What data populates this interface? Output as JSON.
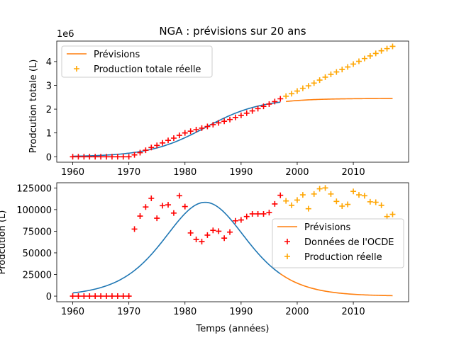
{
  "title": "NGA : prévisions sur 20 ans",
  "chart_data": [
    {
      "type": "line",
      "xlabel": "",
      "ylabel": "Prodcution totale (L)",
      "offset_text": "1e6",
      "xlim": [
        1957.15,
        2019.85
      ],
      "ylim": [
        -230000,
        4860000
      ],
      "x_ticks": [
        1960,
        1970,
        1980,
        1990,
        2000,
        2010
      ],
      "y_ticks": [
        0,
        1000000,
        2000000,
        3000000,
        4000000
      ],
      "y_tick_labels": [
        "0",
        "1",
        "2",
        "3",
        "4"
      ],
      "legend": {
        "position": "upper-left",
        "entries": [
          {
            "label": "Prévisions",
            "kind": "line",
            "color": "#ff7f0e"
          },
          {
            "label": "Production totale réelle",
            "kind": "plus",
            "color": "#ffa500"
          }
        ]
      },
      "fit_line": {
        "color": "#1f77b4",
        "x_start": 1960,
        "x_end": 1997
      },
      "forecast_line": {
        "color": "#ff7f0e",
        "x_start": 1998,
        "x_end": 2017
      },
      "series": [
        {
          "name": "Production totale réelle",
          "color": "#ff0000",
          "marker": "plus",
          "x": [
            1960,
            1961,
            1962,
            1963,
            1964,
            1965,
            1966,
            1967,
            1968,
            1969,
            1970,
            1971,
            1972,
            1973,
            1974,
            1975,
            1976,
            1977,
            1978,
            1979,
            1980,
            1981,
            1982,
            1983,
            1984,
            1985,
            1986,
            1987,
            1988,
            1989,
            1990,
            1991,
            1992,
            1993,
            1994,
            1995,
            1996,
            1997
          ],
          "y": [
            0,
            0,
            0,
            0,
            0,
            0,
            0,
            0,
            0,
            0,
            0,
            77000,
            170000,
            273000,
            386000,
            476000,
            580000,
            686000,
            782000,
            898000,
            1001000,
            1074000,
            1139000,
            1202000,
            1272000,
            1348000,
            1423000,
            1490000,
            1564000,
            1651000,
            1739000,
            1830000,
            1925000,
            2021000,
            2116000,
            2212000,
            2318000,
            2434000
          ]
        },
        {
          "name": "Production totale réelle",
          "color": "#ffa500",
          "marker": "plus",
          "x": [
            1998,
            1999,
            2000,
            2001,
            2002,
            2003,
            2004,
            2005,
            2006,
            2007,
            2008,
            2009,
            2010,
            2011,
            2012,
            2013,
            2014,
            2015,
            2016,
            2017
          ],
          "y": [
            2544000,
            2649000,
            2760000,
            2877000,
            2978000,
            3096000,
            3220000,
            3345000,
            3463000,
            3563000,
            3667000,
            3773000,
            3894000,
            4011000,
            4127000,
            4236000,
            4341000,
            4452000,
            4544000,
            4638000
          ]
        }
      ]
    },
    {
      "type": "line",
      "xlabel": "Temps (années)",
      "ylabel": "Prodcution (L)",
      "xlim": [
        1957.15,
        2019.85
      ],
      "ylim": [
        -6500,
        131000
      ],
      "x_ticks": [
        1960,
        1970,
        1980,
        1990,
        2000,
        2010
      ],
      "y_ticks": [
        0,
        25000,
        50000,
        75000,
        100000,
        125000
      ],
      "legend": {
        "position": "center-right",
        "entries": [
          {
            "label": "Prévisions",
            "kind": "line",
            "color": "#ff7f0e"
          },
          {
            "label": "Données de l'OCDE",
            "kind": "plus",
            "color": "#ff0000"
          },
          {
            "label": "Production réelle",
            "kind": "plus",
            "color": "#ffa500"
          }
        ]
      },
      "fit_line": {
        "color": "#1f77b4",
        "x_start": 1960,
        "x_end": 1997
      },
      "forecast_line": {
        "color": "#ff7f0e",
        "x_start": 1997,
        "x_end": 2017
      },
      "series": [
        {
          "name": "Données de l'OCDE",
          "color": "#ff0000",
          "marker": "plus",
          "x": [
            1960,
            1961,
            1962,
            1963,
            1964,
            1965,
            1966,
            1967,
            1968,
            1969,
            1970,
            1971,
            1972,
            1973,
            1974,
            1975,
            1976,
            1977,
            1978,
            1979,
            1980,
            1981,
            1982,
            1983,
            1984,
            1985,
            1986,
            1987,
            1988,
            1989,
            1990,
            1991,
            1992,
            1993,
            1994,
            1995,
            1996,
            1997
          ],
          "y": [
            0,
            0,
            0,
            0,
            0,
            0,
            0,
            0,
            0,
            0,
            0,
            77500,
            92500,
            103000,
            113000,
            90000,
            104500,
            105500,
            96000,
            116000,
            103500,
            73000,
            65500,
            63000,
            70500,
            76000,
            75000,
            67000,
            74000,
            87000,
            88000,
            92000,
            95000,
            95000,
            95000,
            96500,
            106500,
            116500
          ]
        },
        {
          "name": "Production réelle",
          "color": "#ffa500",
          "marker": "plus",
          "x": [
            1998,
            1999,
            2000,
            2001,
            2002,
            2003,
            2004,
            2005,
            2006,
            2007,
            2008,
            2009,
            2010,
            2011,
            2012,
            2013,
            2014,
            2015,
            2016,
            2017
          ],
          "y": [
            110000,
            105000,
            111000,
            117000,
            101000,
            118000,
            124000,
            125000,
            118000,
            109500,
            104000,
            106000,
            121000,
            117000,
            116000,
            109000,
            108500,
            105000,
            92000,
            94500
          ]
        }
      ]
    }
  ]
}
